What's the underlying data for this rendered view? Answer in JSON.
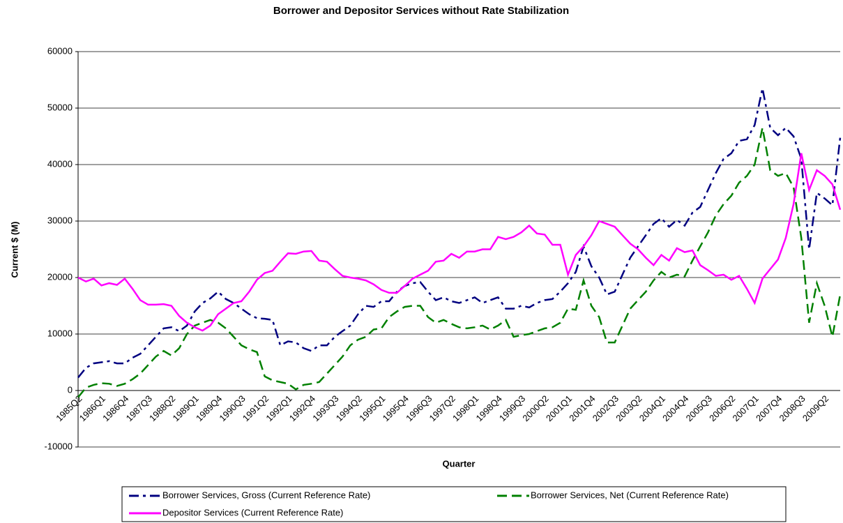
{
  "chart_data": {
    "type": "line",
    "title": "Borrower and Depositor Services without Rate Stabilization",
    "x_label": "Quarter",
    "y_label": "Current $ (M)",
    "categories": [
      "1985Q2",
      null,
      null,
      "1986Q1",
      null,
      null,
      "1986Q4",
      null,
      null,
      "1987Q3",
      null,
      null,
      "1988Q2",
      null,
      null,
      "1989Q1",
      null,
      null,
      "1989Q4",
      null,
      null,
      "1990Q3",
      null,
      null,
      "1991Q2",
      null,
      null,
      "1992Q1",
      null,
      null,
      "1992Q4",
      null,
      null,
      "1993Q3",
      null,
      null,
      "1994Q2",
      null,
      null,
      "1995Q1",
      null,
      null,
      "1995Q4",
      null,
      null,
      "1996Q3",
      null,
      null,
      "1997Q2",
      null,
      null,
      "1998Q1",
      null,
      null,
      "1998Q4",
      null,
      null,
      "1999Q3",
      null,
      null,
      "2000Q2",
      null,
      null,
      "2001Q1",
      null,
      null,
      "2001Q4",
      null,
      null,
      "2002Q3",
      null,
      null,
      "2003Q2",
      null,
      null,
      "2004Q1",
      null,
      null,
      "2004Q4",
      null,
      null,
      "2005Q3",
      null,
      null,
      "2006Q2",
      null,
      null,
      "2007Q1",
      null,
      null,
      "2007Q4",
      null,
      null,
      "2008Q3",
      null,
      null,
      "2009Q2",
      null,
      null
    ],
    "ylim": [
      -10000,
      60000
    ],
    "yticks": [
      -10000,
      0,
      10000,
      20000,
      30000,
      40000,
      50000,
      60000
    ],
    "grid": true,
    "legend": "bottom",
    "series": [
      {
        "name": "Borrower Services, Gross (Current Reference Rate)",
        "color": "#000080",
        "dash": "dashdot",
        "values": [
          2300,
          4000,
          4800,
          5000,
          5200,
          4800,
          4800,
          5800,
          6500,
          8000,
          9500,
          11000,
          11200,
          10500,
          11500,
          14000,
          15500,
          16300,
          17500,
          16200,
          15500,
          14500,
          13500,
          12800,
          12700,
          12500,
          8000,
          8700,
          8500,
          7500,
          7000,
          8000,
          8000,
          9500,
          10500,
          11500,
          13500,
          15000,
          14800,
          15800,
          15800,
          17500,
          18500,
          19000,
          19200,
          17500,
          16000,
          16500,
          15800,
          15500,
          16000,
          16500,
          15500,
          16000,
          16500,
          14500,
          14500,
          15000,
          14700,
          15500,
          16000,
          16200,
          17500,
          19000,
          21000,
          25500,
          22000,
          20000,
          17000,
          17500,
          20500,
          23500,
          25500,
          27500,
          29500,
          30500,
          29000,
          30200,
          29200,
          31500,
          32500,
          35500,
          38500,
          41000,
          42000,
          44200,
          44500,
          47000,
          53500,
          46500,
          45200,
          46500,
          45000,
          41000,
          25000,
          35000,
          34000,
          32800,
          44800
        ]
      },
      {
        "name": "Borrower Services, Net (Current Reference Rate)",
        "color": "#008000",
        "dash": "dash",
        "values": [
          -1200,
          500,
          1000,
          1300,
          1200,
          800,
          1200,
          2000,
          3000,
          4500,
          6000,
          7000,
          6200,
          7500,
          10000,
          11500,
          12000,
          12500,
          12000,
          11000,
          9500,
          8000,
          7300,
          6800,
          2500,
          1800,
          1500,
          1200,
          200,
          1000,
          1200,
          1500,
          3000,
          4500,
          6000,
          8000,
          9000,
          9500,
          10800,
          11000,
          13000,
          14000,
          14800,
          15000,
          15000,
          13000,
          12000,
          12500,
          11800,
          11200,
          11000,
          11200,
          11500,
          10800,
          11500,
          12500,
          9500,
          9800,
          10000,
          10500,
          11000,
          11200,
          12000,
          14500,
          14300,
          19500,
          15000,
          13000,
          8500,
          8500,
          11500,
          14500,
          16000,
          17500,
          19500,
          21000,
          20000,
          20500,
          20200,
          23000,
          25500,
          28000,
          31000,
          33000,
          34500,
          36800,
          38000,
          40000,
          46500,
          39000,
          38000,
          38500,
          36000,
          27000,
          12000,
          19000,
          15000,
          9500,
          17000
        ]
      },
      {
        "name": "Depositor Services (Current Reference Rate)",
        "color": "#ff00ff",
        "dash": "solid",
        "values": [
          20000,
          19300,
          19800,
          18600,
          19000,
          18700,
          19800,
          18000,
          16000,
          15200,
          15200,
          15300,
          15000,
          13200,
          12000,
          11200,
          10600,
          11500,
          13500,
          14500,
          15500,
          15800,
          17500,
          19600,
          20800,
          21200,
          22800,
          24300,
          24200,
          24600,
          24700,
          23000,
          22800,
          21500,
          20300,
          20000,
          19800,
          19500,
          18800,
          17800,
          17300,
          17300,
          18500,
          19800,
          20500,
          21200,
          22800,
          23000,
          24200,
          23500,
          24600,
          24600,
          25000,
          25000,
          27200,
          26800,
          27200,
          28000,
          29200,
          27800,
          27600,
          25800,
          25800,
          20500,
          24000,
          25500,
          27500,
          30000,
          29500,
          29000,
          27500,
          26000,
          25000,
          23500,
          22200,
          24000,
          23000,
          25200,
          24500,
          24800,
          22200,
          21300,
          20300,
          20500,
          19600,
          20300,
          18000,
          15500,
          19800,
          21500,
          23200,
          27000,
          33000,
          42000,
          35500,
          39000,
          38000,
          36500,
          32000
        ]
      }
    ]
  }
}
